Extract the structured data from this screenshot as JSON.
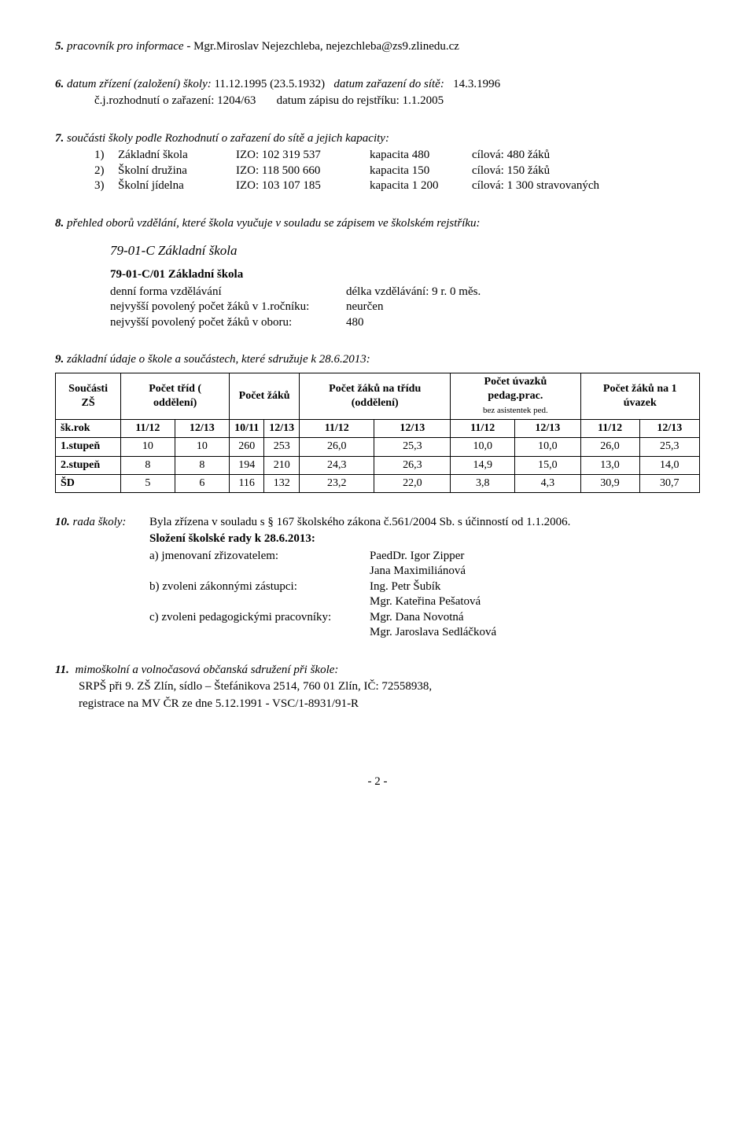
{
  "s5": {
    "num": "5.",
    "label": "pracovník pro informace -",
    "value": "Mgr.Miroslav Nejezchleba, nejezchleba@zs9.zlinedu.cz"
  },
  "s6": {
    "num": "6.",
    "label": "datum zřízení (založení) školy:",
    "val1": "11.12.1995 (23.5.1932)",
    "label2": "datum zařazení do sítě:",
    "val2": "14.3.1996",
    "row2a": "č.j.rozhodnutí o zařazení:  1204/63",
    "row2b": "datum zápisu do rejstříku:  1.1.2005"
  },
  "s7": {
    "num": "7.",
    "heading": "součásti školy podle Rozhodnutí o zařazení do sítě a jejich kapacity:",
    "rows": [
      {
        "n": "1)",
        "name": "Základní škola",
        "izo": "IZO: 102 319 537",
        "kap": "kapacita 480",
        "cil": "cílová: 480 žáků"
      },
      {
        "n": "2)",
        "name": "Školní družina",
        "izo": "IZO: 118 500 660",
        "kap": "kapacita 150",
        "cil": "cílová: 150 žáků"
      },
      {
        "n": "3)",
        "name": "Školní jídelna",
        "izo": "IZO: 103 107 185",
        "kap": "kapacita 1 200",
        "cil": "cílová: 1 300 stravovaných"
      }
    ]
  },
  "s8": {
    "num": "8.",
    "heading": "přehled oborů vzdělání, které škola vyučuje v souladu se zápisem ve školském rejstříku:",
    "code_title": "79-01-C Základní škola",
    "sub_code": "79-01-C/01 Základní škola",
    "rows": [
      {
        "k": "denní forma vzdělávání",
        "v": "délka vzdělávání:  9 r. 0 měs."
      },
      {
        "k": "nejvyšší povolený počet žáků v 1.ročníku:",
        "v": "neurčen"
      },
      {
        "k": "nejvyšší povolený počet žáků v oboru:",
        "v": "480"
      }
    ]
  },
  "s9": {
    "num": "9.",
    "heading": "základní údaje o škole a součástech, které sdružuje k 28.6.2013:",
    "headers": {
      "c1": "Součásti ZŠ",
      "c2": "Počet tříd ( oddělení)",
      "c3": "Počet žáků",
      "c4": "Počet žáků na třídu (oddělení)",
      "c5": "Počet úvazků pedag.prac.",
      "c5_small": "bez asistentek ped.",
      "c6": "Počet žáků na 1 úvazek"
    },
    "yearrow": {
      "label": "šk.rok",
      "c2a": "11/12",
      "c2b": "12/13",
      "c3a": "10/11",
      "c3b": "12/13",
      "c4a": "11/12",
      "c4b": "12/13",
      "c5a": "11/12",
      "c5b": "12/13",
      "c6a": "11/12",
      "c6b": "12/13"
    },
    "rows": [
      {
        "label": "1.stupeň",
        "v": [
          "10",
          "10",
          "260",
          "253",
          "26,0",
          "25,3",
          "10,0",
          "10,0",
          "26,0",
          "25,3"
        ]
      },
      {
        "label": "2.stupeň",
        "v": [
          "8",
          "8",
          "194",
          "210",
          "24,3",
          "26,3",
          "14,9",
          "15,0",
          "13,0",
          "14,0"
        ]
      },
      {
        "label": "ŠD",
        "v": [
          "5",
          "6",
          "116",
          "132",
          "23,2",
          "22,0",
          "3,8",
          "4,3",
          "30,9",
          "30,7"
        ]
      }
    ]
  },
  "s10": {
    "num": "10.",
    "label": "rada školy:",
    "line1": "Byla zřízena v souladu s § 167 školského zákona č.561/2004 Sb. s účinností od 1.1.2006.",
    "line2": "Složení školské rady k 28.6.2013:",
    "rows": [
      {
        "k": "a) jmenovaní zřizovatelem:",
        "v": "PaedDr. Igor Zipper"
      },
      {
        "k": "",
        "v": "Jana Maximiliánová"
      },
      {
        "k": "b) zvoleni zákonnými zástupci:",
        "v": "Ing. Petr Šubík"
      },
      {
        "k": "",
        "v": "Mgr. Kateřina Pešatová"
      },
      {
        "k": "c) zvoleni pedagogickými pracovníky:",
        "v": "Mgr. Dana Novotná"
      },
      {
        "k": "",
        "v": "Mgr. Jaroslava Sedláčková"
      }
    ]
  },
  "s11": {
    "num": "11.",
    "heading": "mimoškolní a volnočasová občanská sdružení při škole:",
    "line1": "SRPŠ při 9. ZŠ Zlín, sídlo – Štefánikova 2514, 760 01 Zlín, IČ: 72558938,",
    "line2": "registrace na MV ČR ze dne 5.12.1991 - VSC/1-8931/91-R"
  },
  "footer": "- 2 -"
}
